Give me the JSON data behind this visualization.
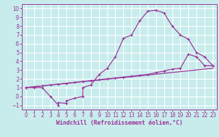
{
  "background_color": "#c8ecec",
  "grid_color": "#ffffff",
  "line_color": "#993399",
  "xlabel": "Windchill (Refroidissement éolien,°C)",
  "xlim": [
    -0.5,
    23.5
  ],
  "ylim": [
    -1.5,
    10.5
  ],
  "xticks": [
    0,
    1,
    2,
    3,
    4,
    5,
    6,
    7,
    8,
    9,
    10,
    11,
    12,
    13,
    14,
    15,
    16,
    17,
    18,
    19,
    20,
    21,
    22,
    23
  ],
  "yticks": [
    -1,
    0,
    1,
    2,
    3,
    4,
    5,
    6,
    7,
    8,
    9,
    10
  ],
  "curve1_x": [
    0,
    1,
    2,
    3,
    4,
    4,
    5,
    5,
    6,
    7,
    7,
    8,
    9,
    10,
    11,
    12,
    13,
    14,
    15,
    16,
    17,
    18,
    19,
    20,
    21,
    22,
    23
  ],
  "curve1_y": [
    1,
    1,
    1,
    0,
    -1,
    -0.7,
    -0.8,
    -0.5,
    -0.2,
    0,
    1.0,
    1.3,
    2.5,
    3.2,
    4.5,
    6.6,
    7.0,
    8.6,
    9.7,
    9.8,
    9.5,
    8.0,
    7.0,
    6.5,
    5.0,
    4.5,
    3.5
  ],
  "curve2_x": [
    0,
    1,
    2,
    3,
    4,
    5,
    6,
    7,
    8,
    9,
    10,
    11,
    12,
    13,
    14,
    15,
    16,
    17,
    18,
    19,
    20,
    21,
    22,
    23
  ],
  "curve2_y": [
    1,
    1.1,
    1.2,
    1.3,
    1.4,
    1.5,
    1.6,
    1.7,
    1.8,
    1.9,
    2.0,
    2.1,
    2.2,
    2.3,
    2.4,
    2.5,
    2.7,
    2.9,
    3.1,
    3.2,
    4.8,
    4.5,
    3.5,
    3.5
  ],
  "curve3_x": [
    0,
    23
  ],
  "curve3_y": [
    1.0,
    3.2
  ],
  "xlabel_fontsize": 6.0,
  "tick_fontsize": 5.5
}
